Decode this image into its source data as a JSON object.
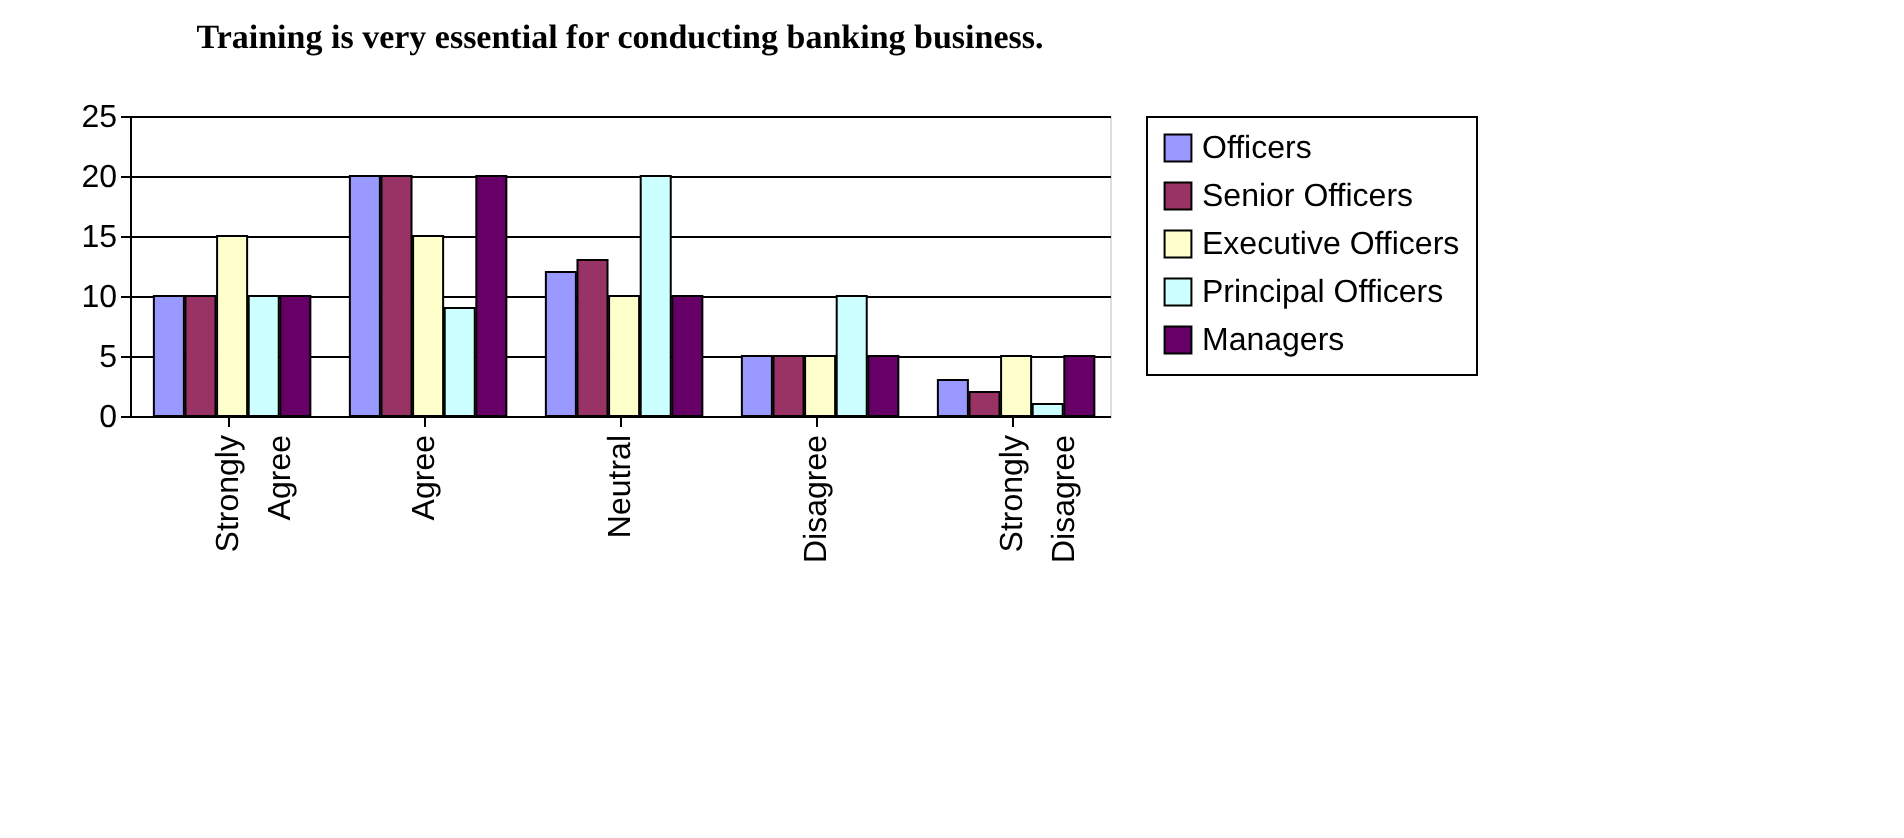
{
  "chart_data": {
    "type": "bar",
    "title": "Training is very essential for conducting banking business.",
    "categories": [
      "Strongly Agree",
      "Agree",
      "Neutral",
      "Disagree",
      "Strongly Disagree"
    ],
    "series": [
      {
        "name": "Officers",
        "color": "#9999ff",
        "values": [
          10,
          20,
          12,
          5,
          3
        ]
      },
      {
        "name": "Senior Officers",
        "color": "#993366",
        "values": [
          10,
          20,
          13,
          5,
          2
        ]
      },
      {
        "name": "Executive Officers",
        "color": "#ffffcc",
        "values": [
          15,
          15,
          10,
          5,
          5
        ]
      },
      {
        "name": "Principal Officers",
        "color": "#ccffff",
        "values": [
          10,
          9,
          20,
          10,
          1
        ]
      },
      {
        "name": "Managers",
        "color": "#660066",
        "values": [
          10,
          20,
          10,
          5,
          5
        ]
      }
    ],
    "ylim": [
      0,
      25
    ],
    "yticks": [
      0,
      5,
      10,
      15,
      20,
      25
    ],
    "grid": "y",
    "legend": "right"
  }
}
